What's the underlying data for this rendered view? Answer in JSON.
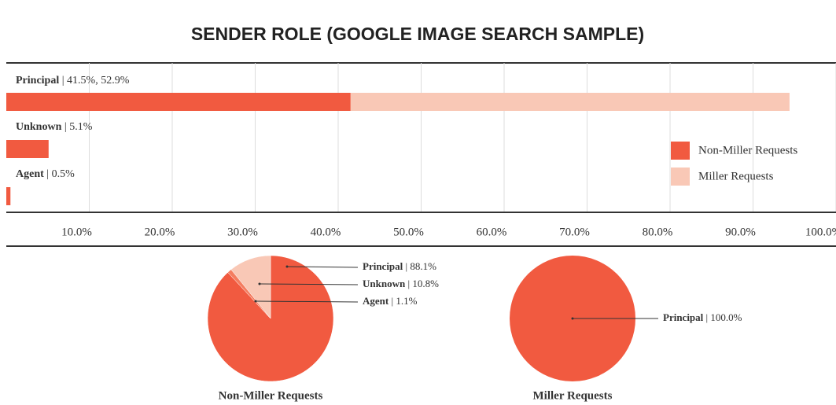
{
  "chart_data": [
    {
      "type": "bar",
      "orientation": "horizontal",
      "stacked": true,
      "title": "SENDER ROLE (GOOGLE IMAGE SEARCH SAMPLE)",
      "categories": [
        "Principal",
        "Unknown",
        "Agent"
      ],
      "series": [
        {
          "name": "Non-Miller Requests",
          "color": "#f15a40",
          "values": [
            41.5,
            5.1,
            0.5
          ]
        },
        {
          "name": "Miller Requests",
          "color": "#f9c8b6",
          "values": [
            52.9,
            0,
            0
          ]
        }
      ],
      "value_labels": [
        "41.5%, 52.9%",
        "5.1%",
        "0.5%"
      ],
      "xlim": [
        0,
        100
      ],
      "xticks": [
        {
          "value": 10,
          "label": "10.0%"
        },
        {
          "value": 20,
          "label": "20.0%"
        },
        {
          "value": 30,
          "label": "30.0%"
        },
        {
          "value": 40,
          "label": "40.0%"
        },
        {
          "value": 50,
          "label": "50.0%"
        },
        {
          "value": 60,
          "label": "60.0%"
        },
        {
          "value": 70,
          "label": "70.0%"
        },
        {
          "value": 80,
          "label": "80.0%"
        },
        {
          "value": 90,
          "label": "90.0%"
        },
        {
          "value": 100,
          "label": "100.0%"
        }
      ],
      "grid": true,
      "legend": "right"
    },
    {
      "type": "pie",
      "title": "Non-Miller Requests",
      "categories": [
        "Principal",
        "Unknown",
        "Agent"
      ],
      "values": [
        88.1,
        10.8,
        1.1
      ],
      "value_labels": [
        "88.1%",
        "10.8%",
        "1.1%"
      ],
      "colors": [
        "#f15a40",
        "#f9c8b6",
        "#f47d60"
      ]
    },
    {
      "type": "pie",
      "title": "Miller Requests",
      "categories": [
        "Principal"
      ],
      "values": [
        100.0
      ],
      "value_labels": [
        "100.0%"
      ],
      "colors": [
        "#f15a40"
      ]
    }
  ]
}
